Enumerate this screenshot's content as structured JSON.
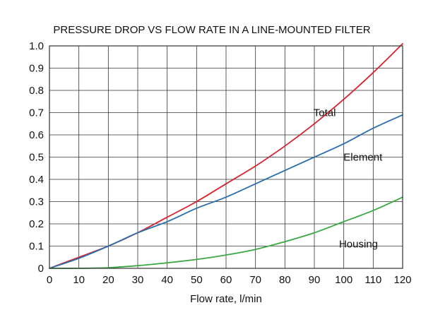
{
  "chart_data": {
    "type": "line",
    "title": "PRESSURE DROP VS FLOW RATE IN A LINE-MOUNTED FILTER",
    "xlabel": "Flow rate, l/min",
    "ylabel": "",
    "xlim": [
      0,
      120
    ],
    "ylim": [
      0,
      1.0
    ],
    "grid": true,
    "x_ticks": [
      "0",
      "10",
      "20",
      "30",
      "40",
      "50",
      "60",
      "70",
      "80",
      "90",
      "100",
      "110",
      "120"
    ],
    "y_ticks": [
      "0",
      "0.1",
      "0.2",
      "0.3",
      "0.4",
      "0.5",
      "0.6",
      "0.7",
      "0.8",
      "0.9",
      "1.0"
    ],
    "x": [
      0,
      10,
      20,
      30,
      40,
      50,
      60,
      70,
      80,
      90,
      100,
      110,
      120
    ],
    "series": [
      {
        "name": "Total",
        "color": "#d6232d",
        "values": [
          0,
          0.05,
          0.1,
          0.16,
          0.23,
          0.3,
          0.38,
          0.46,
          0.55,
          0.65,
          0.76,
          0.88,
          1.01
        ]
      },
      {
        "name": "Element",
        "color": "#2a6eae",
        "values": [
          0,
          0.045,
          0.1,
          0.16,
          0.21,
          0.27,
          0.32,
          0.38,
          0.44,
          0.5,
          0.56,
          0.63,
          0.69
        ]
      },
      {
        "name": "Housing",
        "color": "#3aa843",
        "values": [
          0,
          0.0,
          0.003,
          0.012,
          0.025,
          0.04,
          0.06,
          0.085,
          0.12,
          0.16,
          0.21,
          0.26,
          0.32
        ]
      }
    ]
  }
}
